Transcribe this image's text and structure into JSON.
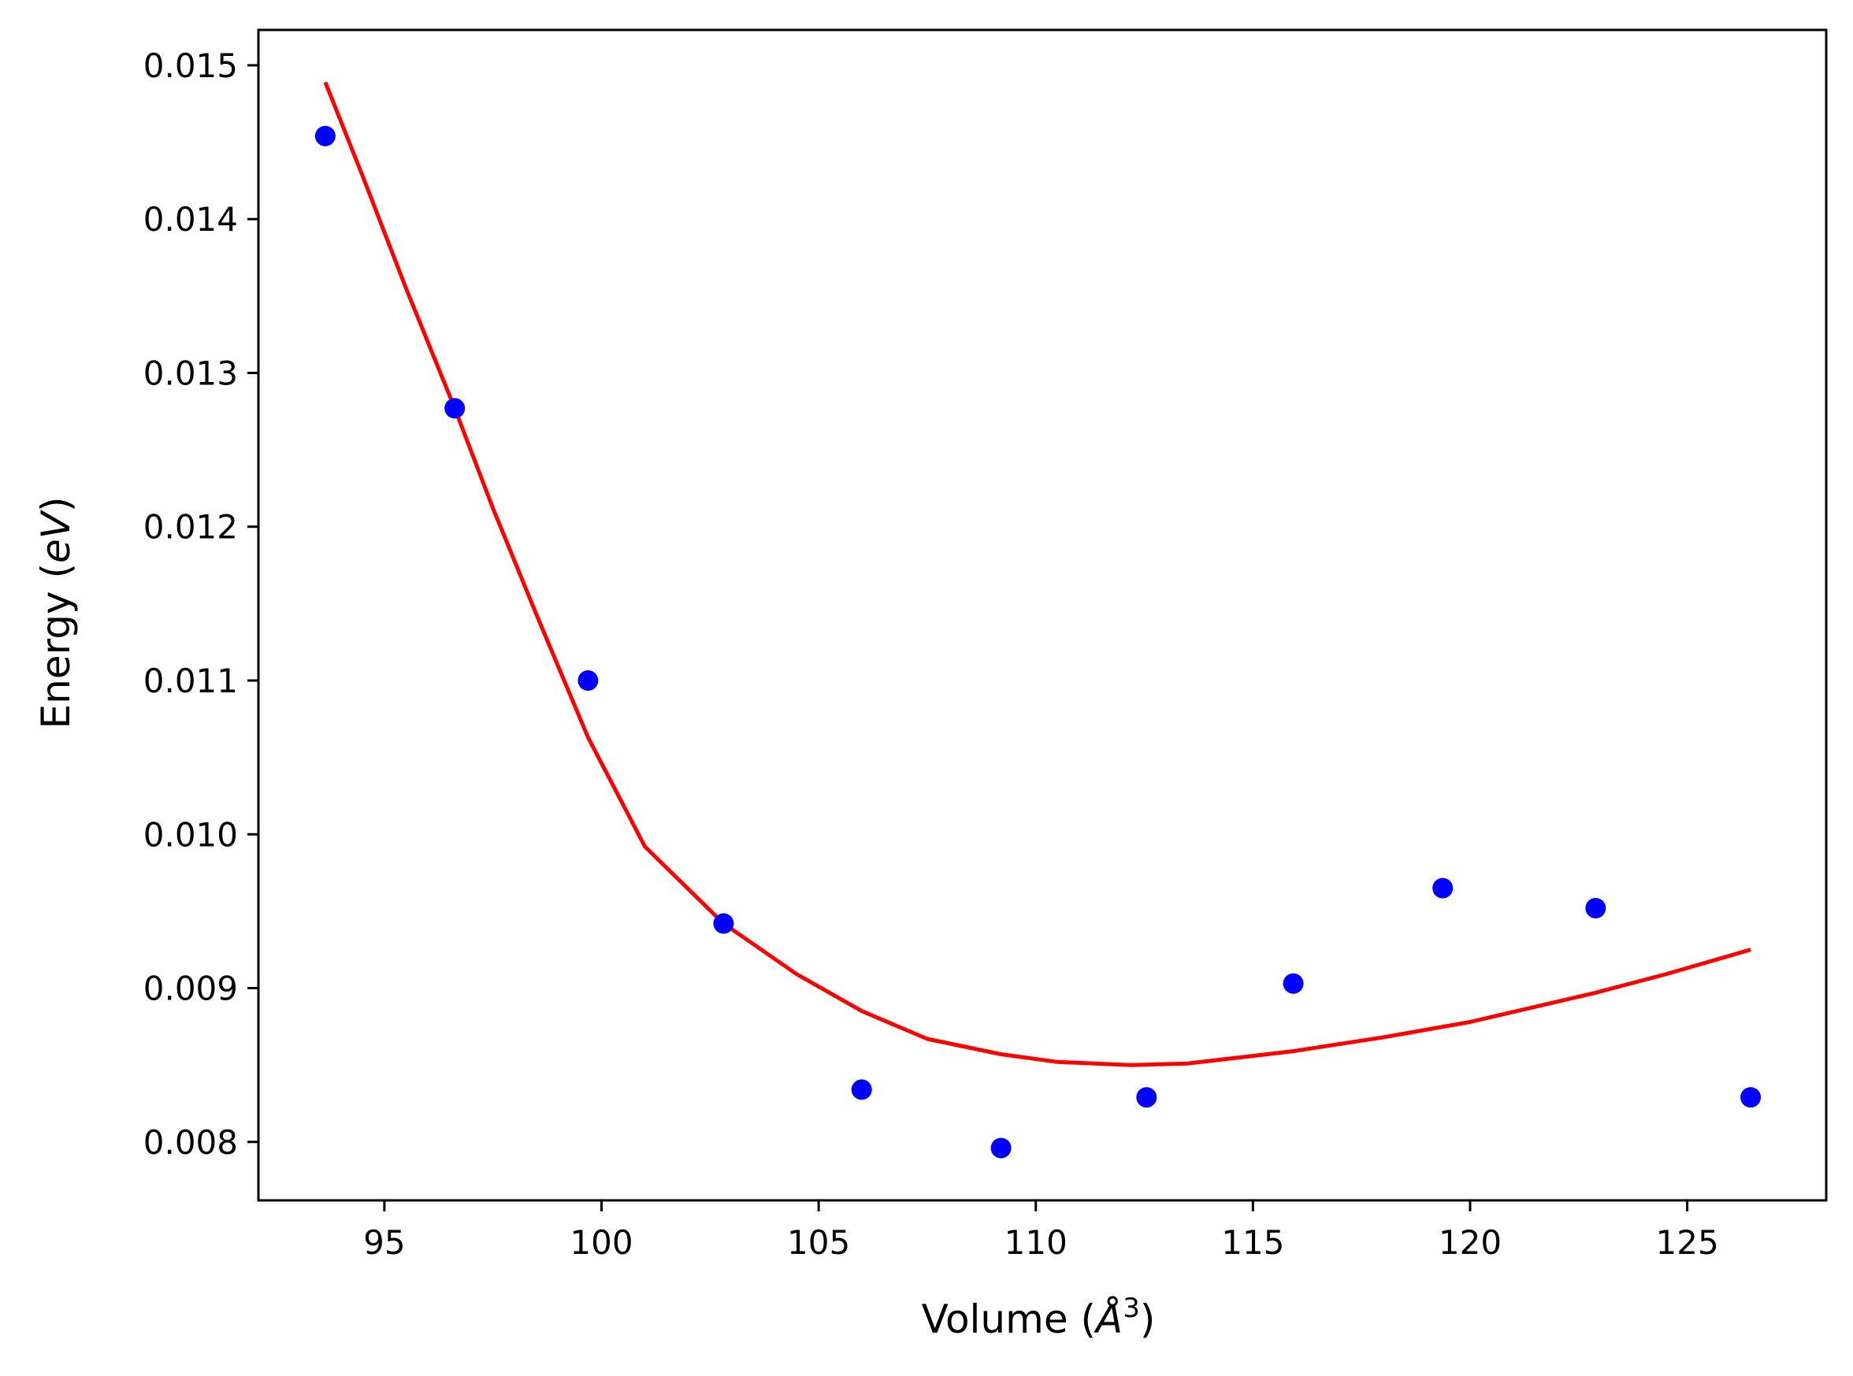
{
  "chart_data": {
    "type": "scatter",
    "title": "",
    "xlabel": {
      "prefix": "Volume (",
      "symbol": "Å",
      "sup": "3",
      "suffix": ")"
    },
    "ylabel": {
      "prefix": "Energy (",
      "symbol": "eV",
      "suffix": ")"
    },
    "xlim": [
      92.1,
      128.2
    ],
    "ylim": [
      0.00762,
      0.01523
    ],
    "xticks": [
      95,
      100,
      105,
      110,
      115,
      120,
      125
    ],
    "xtick_labels": [
      "95",
      "100",
      "105",
      "110",
      "115",
      "120",
      "125"
    ],
    "yticks": [
      0.008,
      0.009,
      0.01,
      0.011,
      0.012,
      0.013,
      0.014,
      0.015
    ],
    "ytick_labels": [
      "0.008",
      "0.009",
      "0.010",
      "0.011",
      "0.012",
      "0.013",
      "0.014",
      "0.015"
    ],
    "grid": false,
    "series": [
      {
        "name": "data",
        "kind": "scatter",
        "color": "#0000ff",
        "x": [
          93.64,
          96.62,
          99.69,
          102.81,
          105.99,
          109.2,
          112.55,
          115.93,
          119.37,
          122.89,
          126.46
        ],
        "y": [
          0.01454,
          0.01277,
          0.011,
          0.00942,
          0.00834,
          0.00796,
          0.00829,
          0.00903,
          0.00965,
          0.00952,
          0.00829
        ]
      },
      {
        "name": "fit",
        "kind": "line",
        "color": "#ff0000",
        "x": [
          93.64,
          94.5,
          95.5,
          96.62,
          97.5,
          98.5,
          99.69,
          101.0,
          102.81,
          104.5,
          106.0,
          107.5,
          109.2,
          110.5,
          112.2,
          113.5,
          115.93,
          118.0,
          120.0,
          122.89,
          124.5,
          126.46
        ],
        "y": [
          0.01489,
          0.01428,
          0.01355,
          0.01277,
          0.01212,
          0.01143,
          0.01063,
          0.00992,
          0.00942,
          0.00909,
          0.00885,
          0.00867,
          0.00857,
          0.00852,
          0.0085,
          0.00851,
          0.00859,
          0.00868,
          0.00878,
          0.00897,
          0.00909,
          0.00925
        ]
      }
    ]
  }
}
